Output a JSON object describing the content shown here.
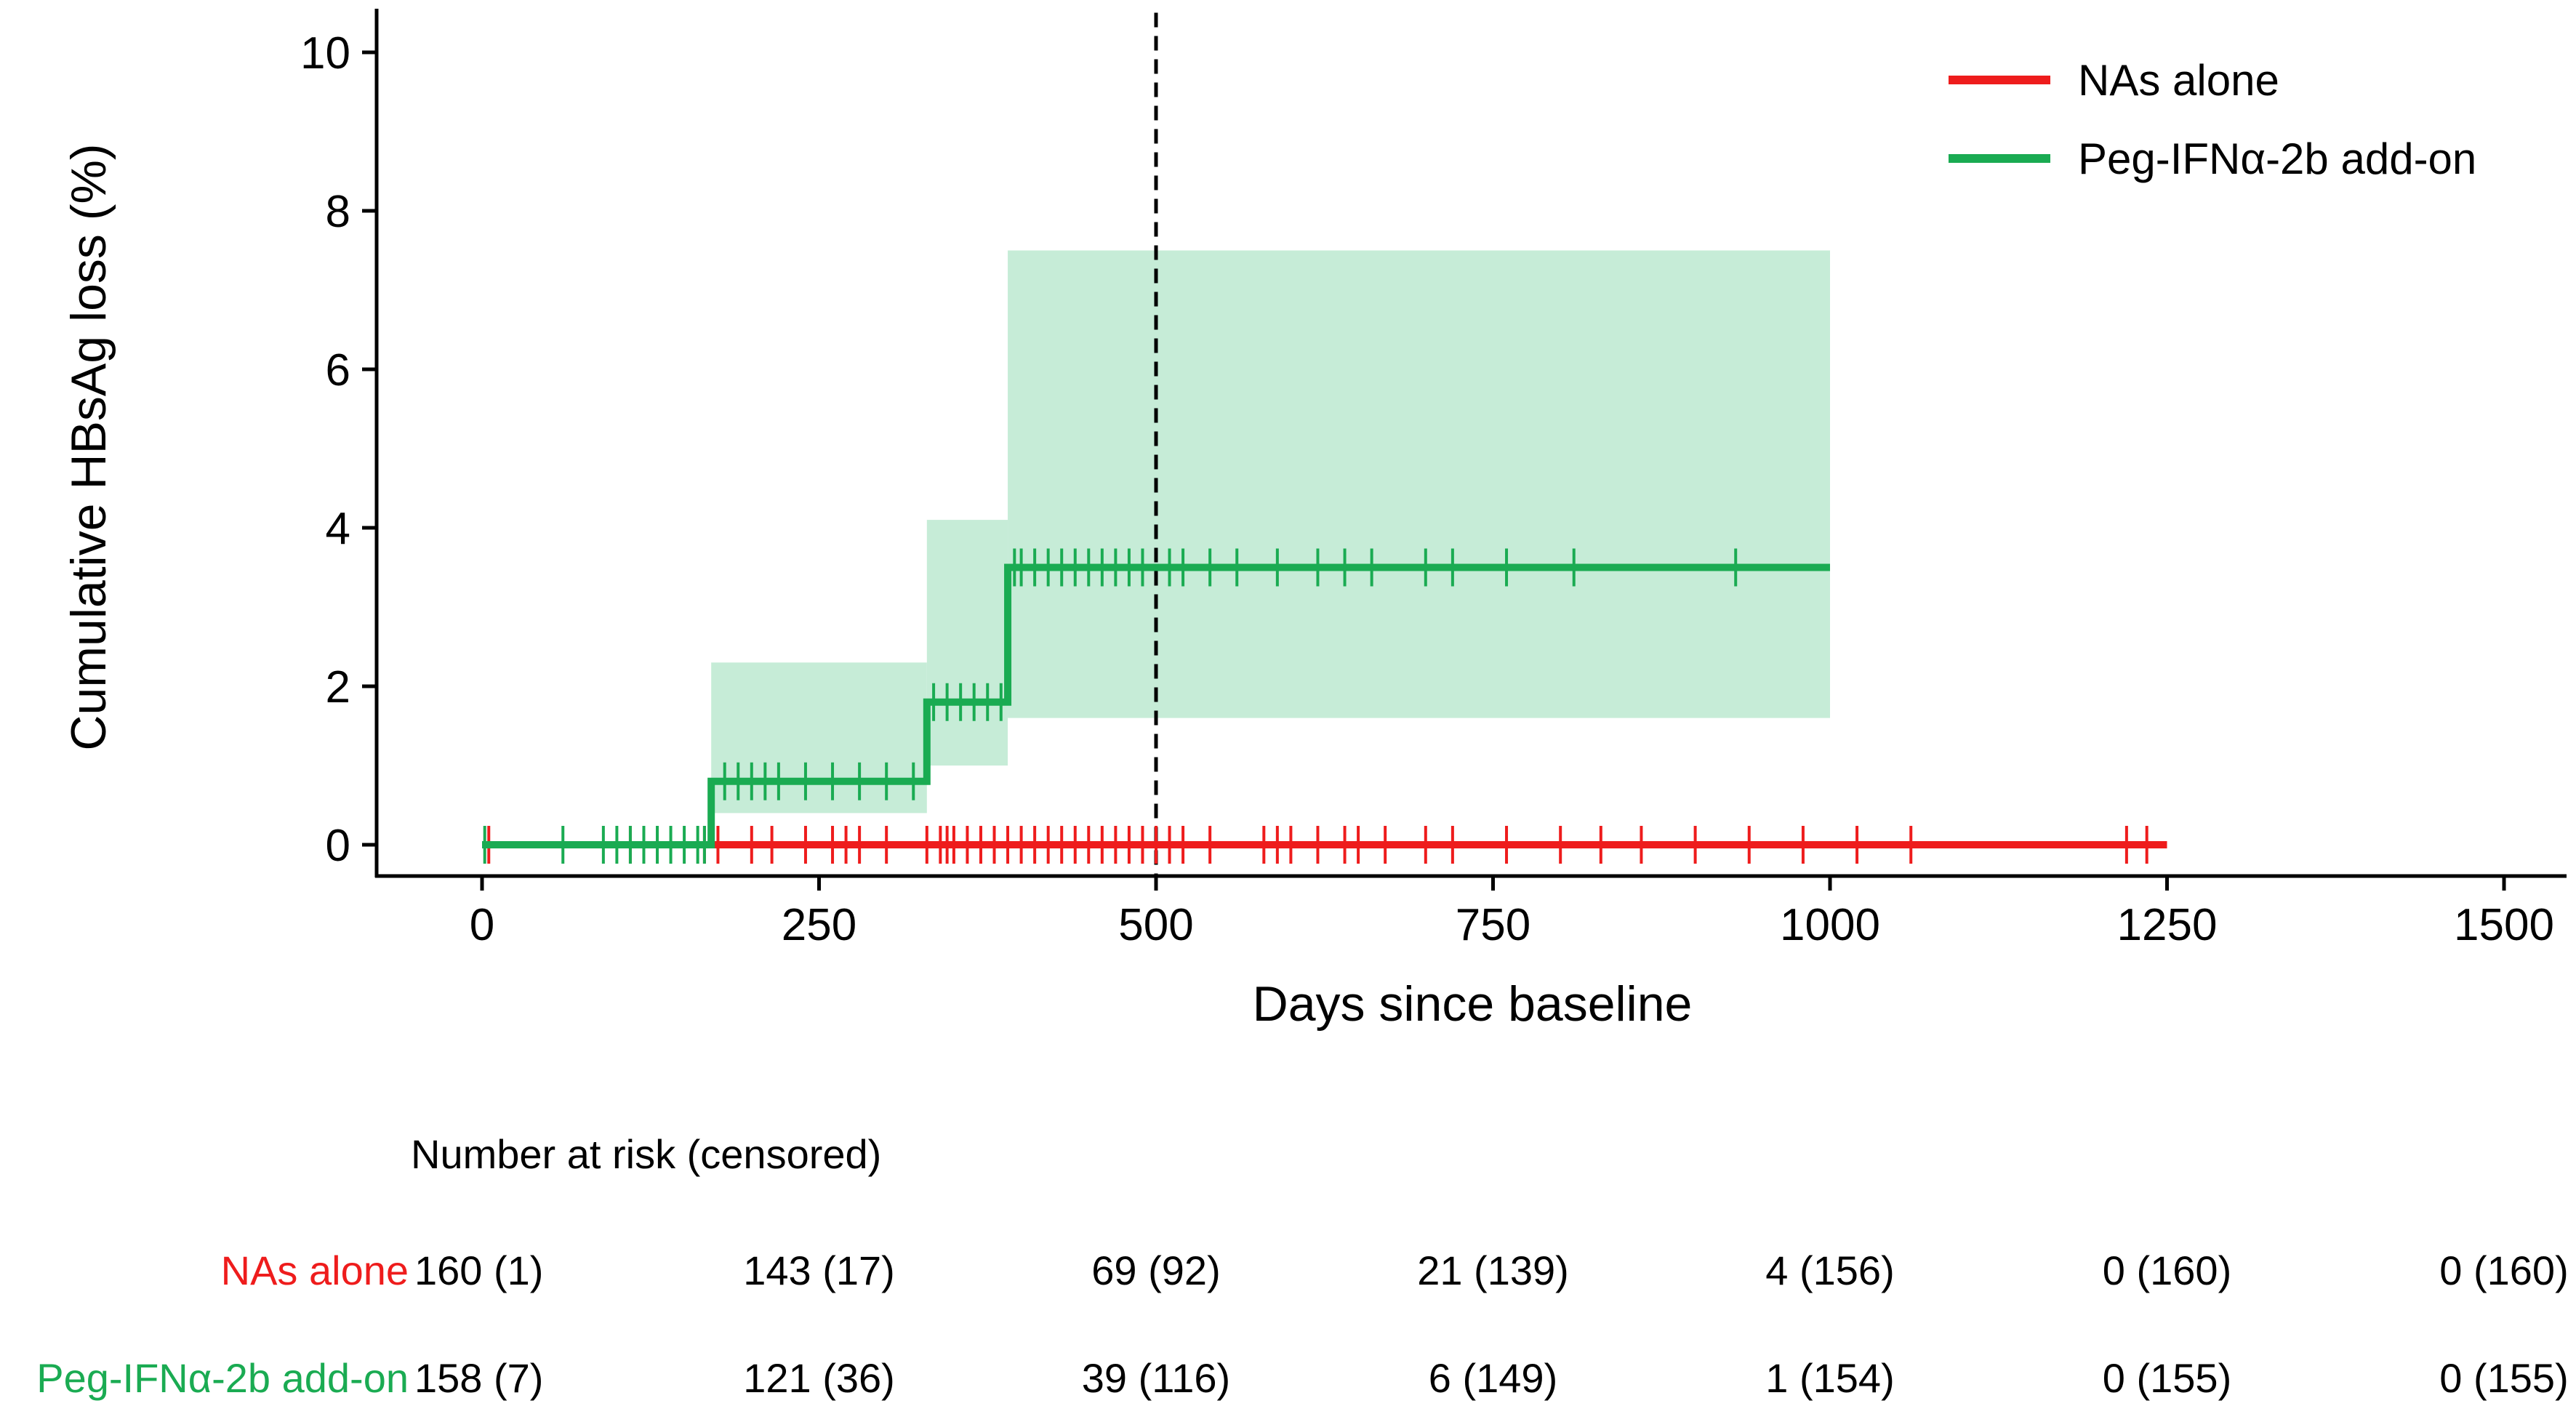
{
  "chart_data": {
    "type": "line",
    "title": "",
    "xlabel": "Days since baseline",
    "ylabel": "Cumulative HBsAg loss (%)",
    "xlim": [
      -150,
      1550
    ],
    "ylim": [
      -0.4,
      10.5
    ],
    "xticks": [
      0,
      250,
      500,
      750,
      1000,
      1250,
      1500
    ],
    "yticks": [
      0,
      2,
      4,
      6,
      8,
      10
    ],
    "reference_line": {
      "x": 500,
      "style": "dashed"
    },
    "legend": {
      "placement": "top-right",
      "entries": [
        "NAs alone",
        "Peg-IFNα-2b add-on"
      ]
    },
    "colors": {
      "nas": "#ee1c1c",
      "peg": "#1aab52",
      "peg_ci": "#c6ecd7",
      "axis": "#000000"
    },
    "series": [
      {
        "name": "NAs alone",
        "color": "#ee1c1c",
        "steps": [
          [
            0,
            0
          ],
          [
            1250,
            0
          ]
        ],
        "censored": [
          5,
          110,
          165,
          175,
          200,
          215,
          240,
          260,
          270,
          280,
          300,
          330,
          340,
          345,
          350,
          360,
          370,
          380,
          390,
          400,
          410,
          420,
          430,
          440,
          450,
          460,
          470,
          480,
          490,
          500,
          510,
          520,
          540,
          580,
          590,
          600,
          620,
          640,
          650,
          670,
          700,
          720,
          760,
          800,
          830,
          860,
          900,
          940,
          980,
          1020,
          1060,
          1220,
          1235
        ]
      },
      {
        "name": "Peg-IFNα-2b add-on",
        "color": "#1aab52",
        "steps": [
          [
            0,
            0
          ],
          [
            170,
            0
          ],
          [
            170,
            0.8
          ],
          [
            330,
            0.8
          ],
          [
            330,
            1.8
          ],
          [
            390,
            1.8
          ],
          [
            390,
            3.5
          ],
          [
            1000,
            3.5
          ]
        ],
        "ci": [
          [
            170,
            330,
            0.4,
            2.3
          ],
          [
            330,
            390,
            1.0,
            4.1
          ],
          [
            390,
            1000,
            1.6,
            7.5
          ]
        ],
        "censored": [
          2,
          60,
          90,
          100,
          110,
          120,
          130,
          140,
          150,
          160,
          165,
          180,
          190,
          200,
          210,
          220,
          240,
          260,
          280,
          300,
          320,
          335,
          345,
          355,
          365,
          375,
          385,
          395,
          400,
          410,
          420,
          430,
          440,
          450,
          460,
          470,
          480,
          490,
          510,
          520,
          540,
          560,
          590,
          620,
          640,
          660,
          700,
          720,
          760,
          810,
          930
        ]
      }
    ]
  },
  "risk_table": {
    "title": "Number at risk (censored)",
    "rows": [
      {
        "label": "NAs alone",
        "values": [
          "160 (1)",
          "143 (17)",
          "69 (92)",
          "21 (139)",
          "4 (156)",
          "0 (160)",
          "0 (160)"
        ]
      },
      {
        "label": "Peg-IFNα-2b add-on",
        "values": [
          "158 (7)",
          "121 (36)",
          "39 (116)",
          "6 (149)",
          "1 (154)",
          "0 (155)",
          "0 (155)"
        ]
      }
    ]
  }
}
